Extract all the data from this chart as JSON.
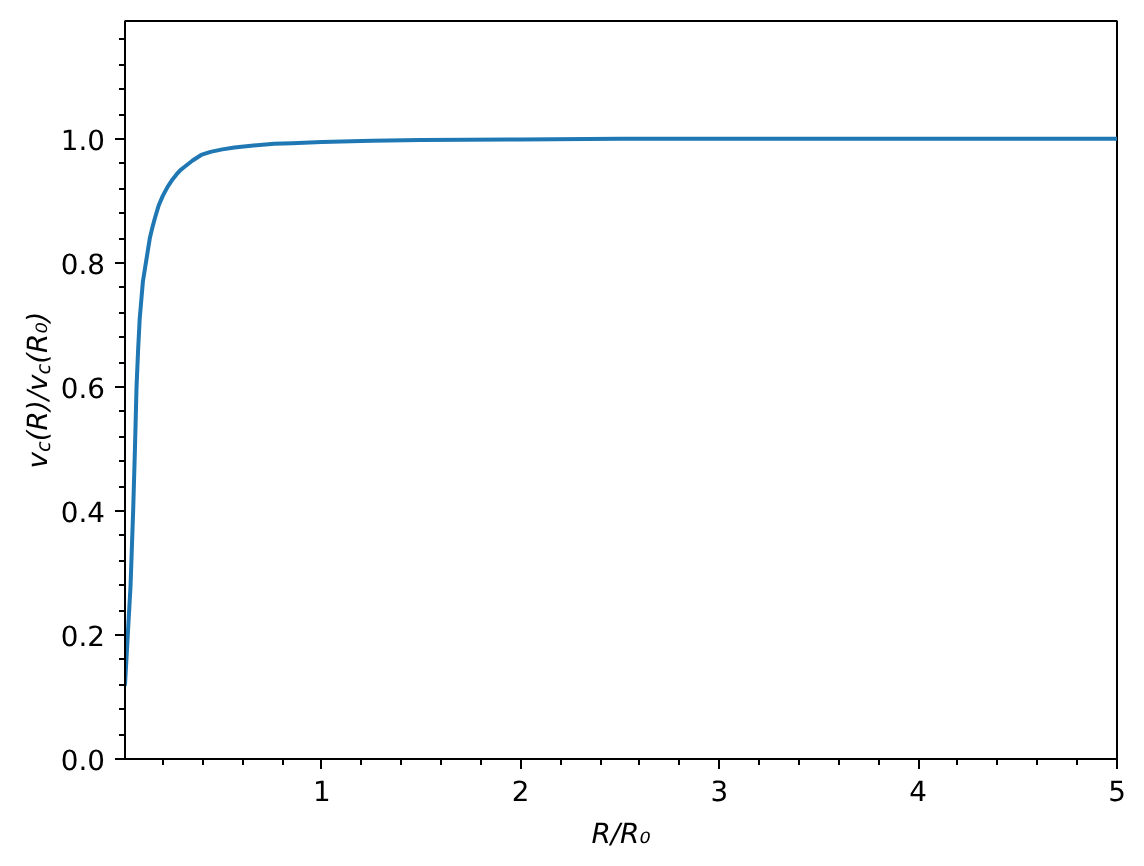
{
  "chart_data": {
    "type": "line",
    "xlabel": "R/R₀",
    "ylabel": "v$_{c}$(R)/v$_{c}$(R₀)",
    "x": [
      0.01,
      0.024,
      0.038,
      0.051,
      0.06,
      0.068,
      0.076,
      0.084,
      0.092,
      0.1,
      0.115,
      0.135,
      0.15,
      0.162,
      0.18,
      0.2,
      0.225,
      0.25,
      0.27,
      0.29,
      0.31,
      0.35,
      0.393,
      0.44,
      0.5,
      0.56,
      0.645,
      0.76,
      0.85,
      1.0,
      1.25,
      1.5,
      2.0,
      2.5,
      3.0,
      4.0,
      5.0
    ],
    "series": [
      {
        "color": "#1f77b4",
        "values": [
          0.12,
          0.2,
          0.28,
          0.4,
          0.5,
          0.6,
          0.66,
          0.71,
          0.74,
          0.77,
          0.8,
          0.84,
          0.86,
          0.874,
          0.893,
          0.908,
          0.923,
          0.935,
          0.943,
          0.95,
          0.955,
          0.965,
          0.974,
          0.979,
          0.983,
          0.986,
          0.989,
          0.992,
          0.993,
          0.995,
          0.997,
          0.998,
          0.999,
          1.0,
          1.0,
          1.0,
          1.0
        ]
      }
    ],
    "line_style": "solid",
    "xlim": [
      0.01,
      5
    ],
    "ylim": [
      0,
      1.19
    ],
    "xticks": [
      {
        "value": 0.2,
        "label": null
      },
      {
        "value": 0.4,
        "label": null
      },
      {
        "value": 0.6,
        "label": null
      },
      {
        "value": 0.8,
        "label": null
      },
      1,
      {
        "value": 1.2,
        "label": null
      },
      {
        "value": 1.4,
        "label": null
      },
      {
        "value": 1.6,
        "label": null
      },
      {
        "value": 1.8,
        "label": null
      },
      2,
      {
        "value": 2.2,
        "label": null
      },
      {
        "value": 2.4,
        "label": null
      },
      {
        "value": 2.6,
        "label": null
      },
      {
        "value": 2.8,
        "label": null
      },
      3,
      {
        "value": 3.2,
        "label": null
      },
      {
        "value": 3.4,
        "label": null
      },
      {
        "value": 3.6,
        "label": null
      },
      {
        "value": 3.8,
        "label": null
      },
      4,
      {
        "value": 4.2,
        "label": null
      },
      {
        "value": 4.4,
        "label": null
      },
      {
        "value": 4.6,
        "label": null
      },
      {
        "value": 4.8,
        "label": null
      },
      5
    ],
    "yticks": [
      {
        "value": 0,
        "label": "0.0"
      },
      {
        "value": 0.04,
        "label": null
      },
      {
        "value": 0.08,
        "label": null
      },
      {
        "value": 0.12,
        "label": null
      },
      {
        "value": 0.16,
        "label": null
      },
      0.2,
      {
        "value": 0.24,
        "label": null
      },
      {
        "value": 0.28,
        "label": null
      },
      {
        "value": 0.32,
        "label": null
      },
      {
        "value": 0.36,
        "label": null
      },
      0.4,
      {
        "value": 0.44,
        "label": null
      },
      {
        "value": 0.48,
        "label": null
      },
      {
        "value": 0.52,
        "label": null
      },
      {
        "value": 0.56,
        "label": null
      },
      0.6,
      {
        "value": 0.64,
        "label": null
      },
      {
        "value": 0.68,
        "label": null
      },
      {
        "value": 0.72,
        "label": null
      },
      {
        "value": 0.76,
        "label": null
      },
      0.8,
      {
        "value": 0.84,
        "label": null
      },
      {
        "value": 0.88,
        "label": null
      },
      {
        "value": 0.92,
        "label": null
      },
      {
        "value": 0.96,
        "label": null
      },
      {
        "value": 1,
        "label": "1.0"
      },
      {
        "value": 1.04,
        "label": null
      },
      {
        "value": 1.08,
        "label": null
      },
      {
        "value": 1.12,
        "label": null
      },
      {
        "value": 1.16,
        "label": null
      }
    ]
  }
}
